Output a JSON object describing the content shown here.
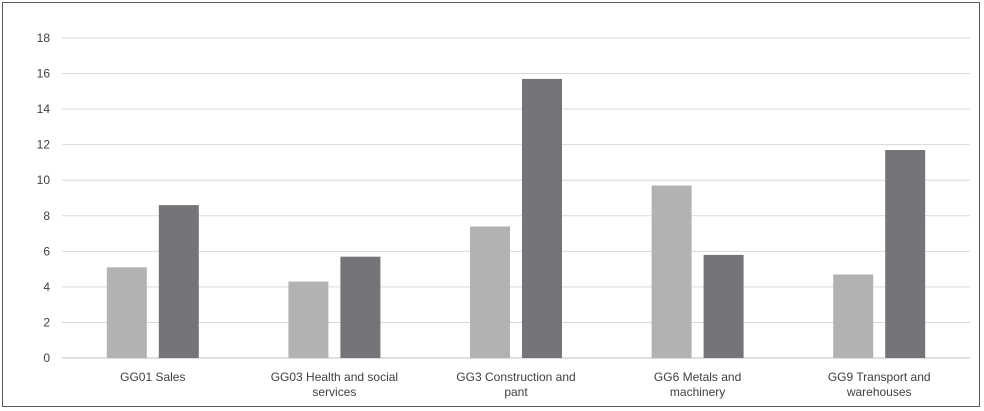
{
  "chart_data": {
    "type": "bar",
    "title": "",
    "xlabel": "",
    "ylabel": "",
    "ylim": [
      0,
      18
    ],
    "yticks": [
      0,
      2,
      4,
      6,
      8,
      10,
      12,
      14,
      16,
      18
    ],
    "grid": true,
    "legend": "none",
    "categories": [
      [
        "GG01 Sales"
      ],
      [
        "GG03 Health and social",
        "services"
      ],
      [
        "GG3 Construction and",
        "pant"
      ],
      [
        "GG6 Metals and",
        "machinery"
      ],
      [
        "GG9 Transport and",
        "warehouses"
      ]
    ],
    "series": [
      {
        "values": [
          5.1,
          4.3,
          7.4,
          9.7,
          4.7
        ],
        "color": "#b1b3b3"
      },
      {
        "values": [
          8.6,
          5.7,
          15.7,
          5.8,
          11.7
        ],
        "color": "#737578"
      }
    ],
    "colors": {
      "grid": "#d9d9d9",
      "axis": "#bfbfbf",
      "text": "#404040",
      "border": "#595959"
    }
  }
}
